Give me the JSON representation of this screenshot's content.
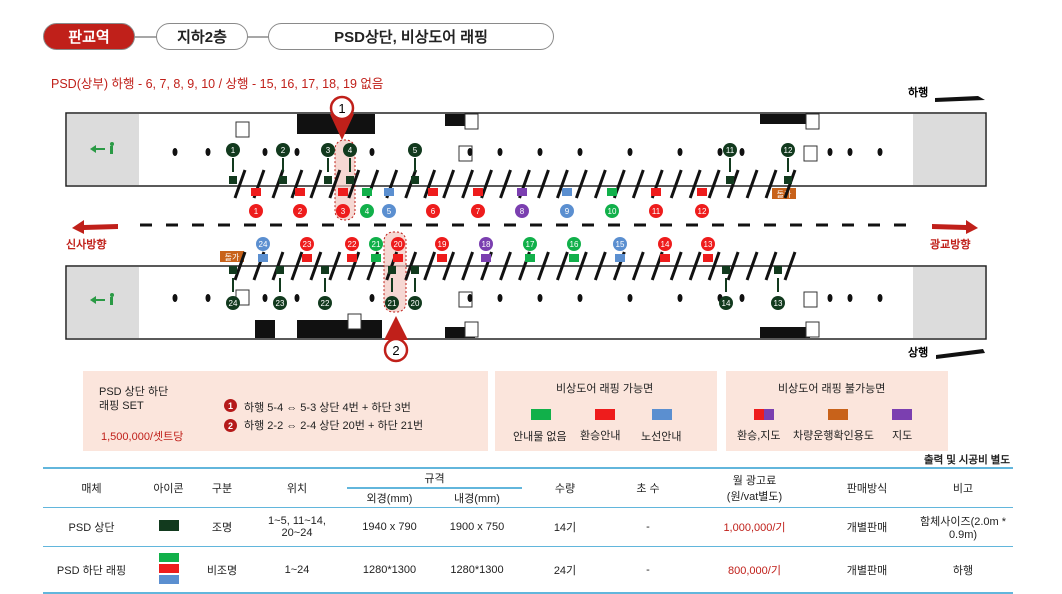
{
  "header": {
    "station": "판교역",
    "floor": "지하2층",
    "product": "PSD상단, 비상도어 래핑"
  },
  "subtitle": "PSD(상부) 하행 - 6, 7, 8, 9, 10 / 상행 - 15, 16, 17, 18, 19 없음",
  "diagram": {
    "dir_down": "하행",
    "dir_up": "상행",
    "left_dir": "신사방향",
    "right_dir": "광교방향",
    "notice_label": "돌가",
    "callout_1": "1",
    "callout_2": "2",
    "upper_wall_markers": [
      "1",
      "2",
      "3",
      "4",
      "5",
      "11",
      "12"
    ],
    "upper_door_markers": [
      "1",
      "2",
      "3",
      "4",
      "5",
      "6",
      "7",
      "8",
      "9",
      "10",
      "11",
      "12"
    ],
    "upper_door_types": [
      "red",
      "red",
      "red",
      "green",
      "blue",
      "red",
      "red",
      "purple",
      "blue",
      "green",
      "red",
      "red",
      "multi"
    ],
    "lower_wall_markers": [
      "24",
      "23",
      "22",
      "21",
      "20",
      "14",
      "13"
    ],
    "lower_door_markers": [
      "24",
      "23",
      "22",
      "21",
      "20",
      "19",
      "18",
      "17",
      "16",
      "15",
      "14",
      "13"
    ],
    "lower_door_types": [
      "blue",
      "red",
      "red",
      "green",
      "red",
      "multi",
      "purple",
      "green",
      "green",
      "blue",
      "red",
      "red",
      "red"
    ]
  },
  "set_box": {
    "title_line1": "PSD 상단 하단",
    "title_line2": "래핑 SET",
    "price": "1,500,000/셋트당",
    "item1_num": "1",
    "item1_text": "하행 5-4 ⇔ 5-3   상단 4번 + 하단 3번",
    "item2_num": "2",
    "item2_text": "하행 2-2 ⇔ 2-4   상단 20번 + 하단 21번"
  },
  "possible_box": {
    "title": "비상도어 래핑 가능면",
    "legend": [
      {
        "label": "안내물 없음",
        "color": "#11b04a"
      },
      {
        "label": "환승안내",
        "color": "#ee1c1c"
      },
      {
        "label": "노선안내",
        "color": "#5b8fd0"
      }
    ]
  },
  "impossible_box": {
    "title": "비상도어 래핑 불가능면",
    "legend": [
      {
        "label": "환승,지도",
        "color": "#ee1c1c"
      },
      {
        "label": "차량운행확인용도",
        "color": "#c8621a"
      },
      {
        "label": "지도",
        "color": "#7b3fb0"
      }
    ]
  },
  "table": {
    "note": "출력 및 시공비 별도",
    "headers": {
      "media": "매체",
      "icon": "아이콘",
      "type": "구분",
      "location": "위치",
      "spec": "규격",
      "spec_outer": "외경(mm)",
      "spec_inner": "내경(mm)",
      "qty": "수량",
      "count": "초 수",
      "price": "월 광고료",
      "price_sub": "(원/vat별도)",
      "sale": "판매방식",
      "remark": "비고"
    },
    "rows": [
      {
        "media": "PSD 상단",
        "type": "조명",
        "location_1": "1~5, 11~14,",
        "location_2": "20~24",
        "outer": "1940 x 790",
        "inner": "1900 x 750",
        "qty": "14기",
        "count": "-",
        "price": "1,000,000/기",
        "sale": "개별판매",
        "remark": "함체사이즈(2.0m * 0.9m)"
      },
      {
        "media": "PSD 하단 래핑",
        "type": "비조명",
        "location_1": "1~24",
        "location_2": "",
        "outer": "1280*1300",
        "inner": "1280*1300",
        "qty": "24기",
        "count": "-",
        "price": "800,000/기",
        "sale": "개별판매",
        "remark": "하행"
      }
    ]
  }
}
